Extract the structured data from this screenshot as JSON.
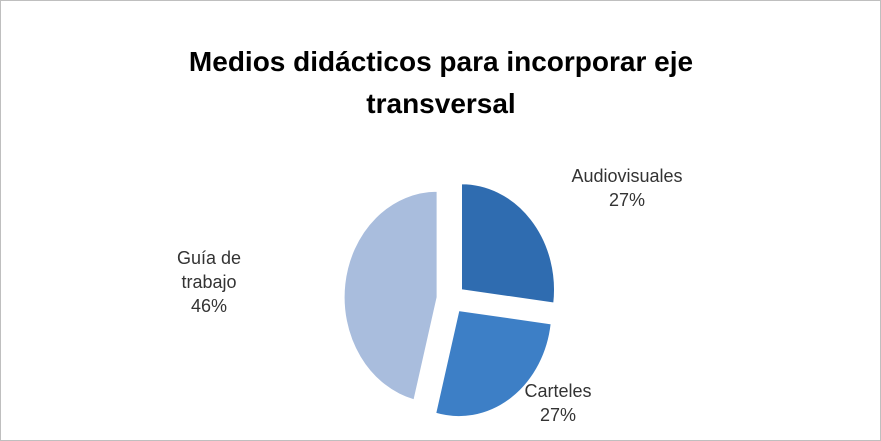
{
  "chart_data": {
    "type": "pie",
    "title": "Medios didácticos para incorporar eje transversal",
    "categories": [
      "Audiovisuales",
      "Carteles",
      "Guía de trabajo"
    ],
    "values": [
      27,
      27,
      46
    ],
    "value_labels": [
      "27%",
      "27%",
      "46%"
    ],
    "colors": [
      "#2f6cb0",
      "#3d7fc6",
      "#a9bddd"
    ]
  }
}
